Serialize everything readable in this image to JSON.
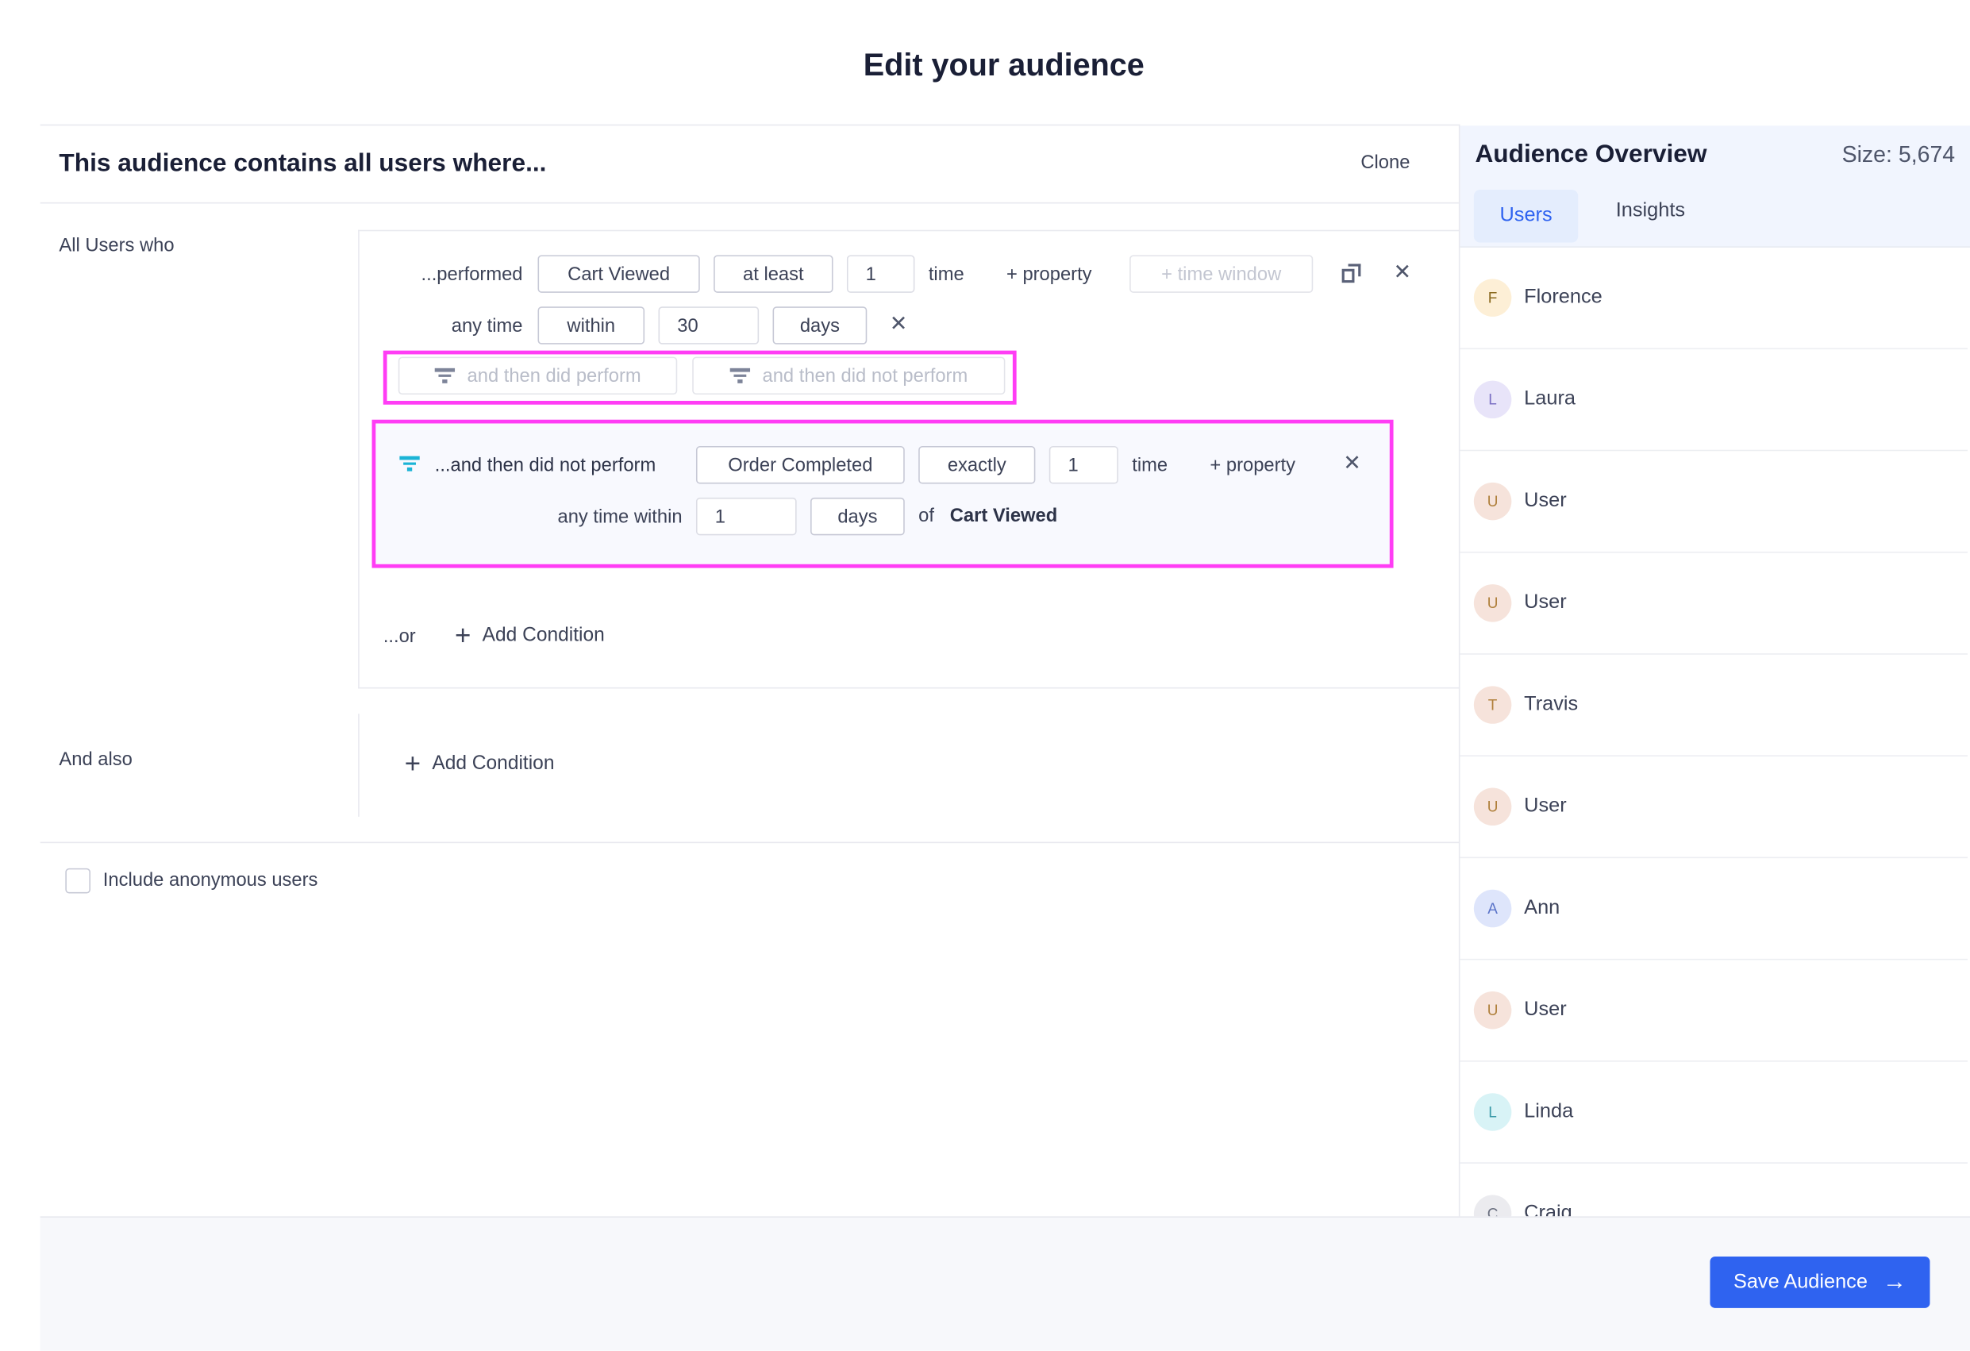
{
  "page_title": "Edit your audience",
  "builder": {
    "heading": "This audience contains all users where...",
    "clone_label": "Clone",
    "all_users_label": "All Users who",
    "condition": {
      "verb": "...performed",
      "event": "Cart Viewed",
      "operator": "at least",
      "count": "1",
      "count_unit": "time",
      "add_property": "+ property",
      "add_time_window": "+ time window",
      "time_prefix": "any time",
      "time_operator": "within",
      "time_value": "30",
      "time_unit": "days",
      "then_did_perform": "and then did perform",
      "then_did_not_perform": "and then did not perform"
    },
    "sub_condition": {
      "verb": "...and then did not perform",
      "event": "Order Completed",
      "operator": "exactly",
      "count": "1",
      "count_unit": "time",
      "add_property": "+ property",
      "time_prefix": "any time within",
      "time_value": "1",
      "time_unit": "days",
      "of_label": "of",
      "of_event": "Cart Viewed"
    },
    "or_label": "...or",
    "add_condition_label": "Add Condition",
    "and_also_label": "And also",
    "and_also_add_condition": "Add Condition",
    "include_anonymous_label": "Include anonymous users",
    "include_anonymous_checked": false
  },
  "overview": {
    "title": "Audience Overview",
    "size": "Size: 5,674",
    "tabs": [
      {
        "label": "Users",
        "active": true
      },
      {
        "label": "Insights",
        "active": false
      }
    ],
    "users": [
      {
        "initial": "F",
        "name": "Florence",
        "bg": "#fdefd6",
        "fg": "#8a6a1e"
      },
      {
        "initial": "L",
        "name": "Laura",
        "bg": "#e8e4f9",
        "fg": "#7b6fc4"
      },
      {
        "initial": "U",
        "name": "User",
        "bg": "#f6e3db",
        "fg": "#b0803c"
      },
      {
        "initial": "U",
        "name": "User",
        "bg": "#f6e3db",
        "fg": "#b0803c"
      },
      {
        "initial": "T",
        "name": "Travis",
        "bg": "#f6e3db",
        "fg": "#b0803c"
      },
      {
        "initial": "U",
        "name": "User",
        "bg": "#f6e3db",
        "fg": "#b0803c"
      },
      {
        "initial": "A",
        "name": "Ann",
        "bg": "#dee5fb",
        "fg": "#5a73c8"
      },
      {
        "initial": "U",
        "name": "User",
        "bg": "#f6e3db",
        "fg": "#b0803c"
      },
      {
        "initial": "L",
        "name": "Linda",
        "bg": "#d8f3f6",
        "fg": "#3a9aa8"
      },
      {
        "initial": "C",
        "name": "Craig",
        "bg": "#ebebef",
        "fg": "#6b7080"
      }
    ]
  },
  "footer": {
    "save_label": "Save Audience"
  },
  "colors": {
    "accent": "#2f63f0",
    "highlight": "#ff3df5",
    "filter_icon_active": "#1bb4d6"
  }
}
